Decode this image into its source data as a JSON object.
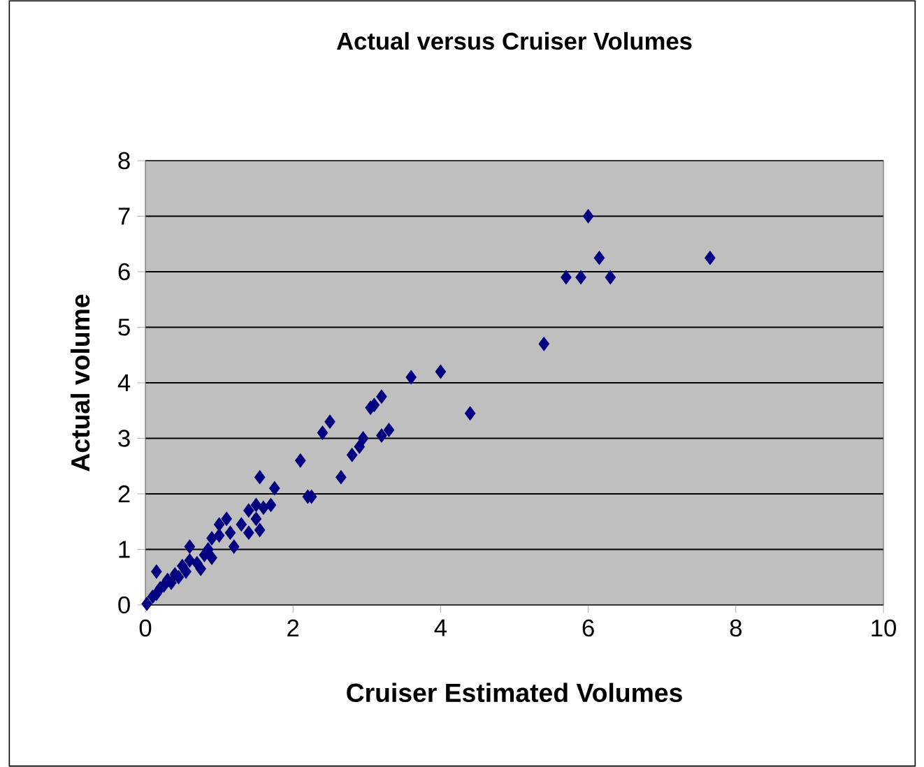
{
  "chart_data": {
    "type": "scatter",
    "title": "Actual versus Cruiser Volumes",
    "xlabel": "Cruiser Estimated Volumes",
    "ylabel": "Actual volume",
    "xlim": [
      0,
      10
    ],
    "ylim": [
      0,
      8
    ],
    "xticks": [
      0,
      2,
      4,
      6,
      8,
      10
    ],
    "yticks": [
      0,
      1,
      2,
      3,
      4,
      5,
      6,
      7,
      8
    ],
    "grid": "y",
    "marker": "diamond",
    "series": [
      {
        "color": "#000080",
        "x": [
          6.0,
          6.15,
          5.7,
          5.9,
          6.3,
          7.65,
          5.4,
          4.4,
          4.0,
          3.6,
          3.2,
          3.1,
          3.05,
          3.3,
          3.2,
          2.95,
          2.9,
          2.8,
          2.65,
          2.5,
          2.4,
          2.1,
          2.25,
          2.2,
          1.75,
          1.7,
          1.55,
          1.6,
          1.5,
          1.55,
          1.4,
          1.4,
          1.3,
          1.2,
          1.1,
          1.0,
          1.0,
          0.9,
          0.85,
          0.8,
          0.75,
          0.6,
          0.6,
          0.55,
          0.5,
          0.45,
          0.4,
          0.35,
          0.3,
          0.25,
          0.15,
          0.2,
          0.15,
          0.1,
          0.02,
          0.7,
          0.9,
          1.15,
          1.5
        ],
        "values": [
          7.0,
          6.25,
          5.9,
          5.9,
          5.9,
          6.25,
          4.7,
          3.45,
          4.2,
          4.1,
          3.75,
          3.6,
          3.55,
          3.15,
          3.05,
          3.0,
          2.85,
          2.7,
          2.3,
          3.3,
          3.1,
          2.6,
          1.95,
          1.95,
          2.1,
          1.8,
          2.3,
          1.75,
          1.8,
          1.35,
          1.7,
          1.3,
          1.45,
          1.05,
          1.55,
          1.45,
          1.25,
          1.2,
          1.0,
          0.9,
          0.65,
          1.05,
          0.8,
          0.6,
          0.7,
          0.5,
          0.55,
          0.4,
          0.45,
          0.35,
          0.6,
          0.3,
          0.2,
          0.15,
          0.02,
          0.75,
          0.85,
          1.3,
          1.55
        ]
      }
    ]
  }
}
